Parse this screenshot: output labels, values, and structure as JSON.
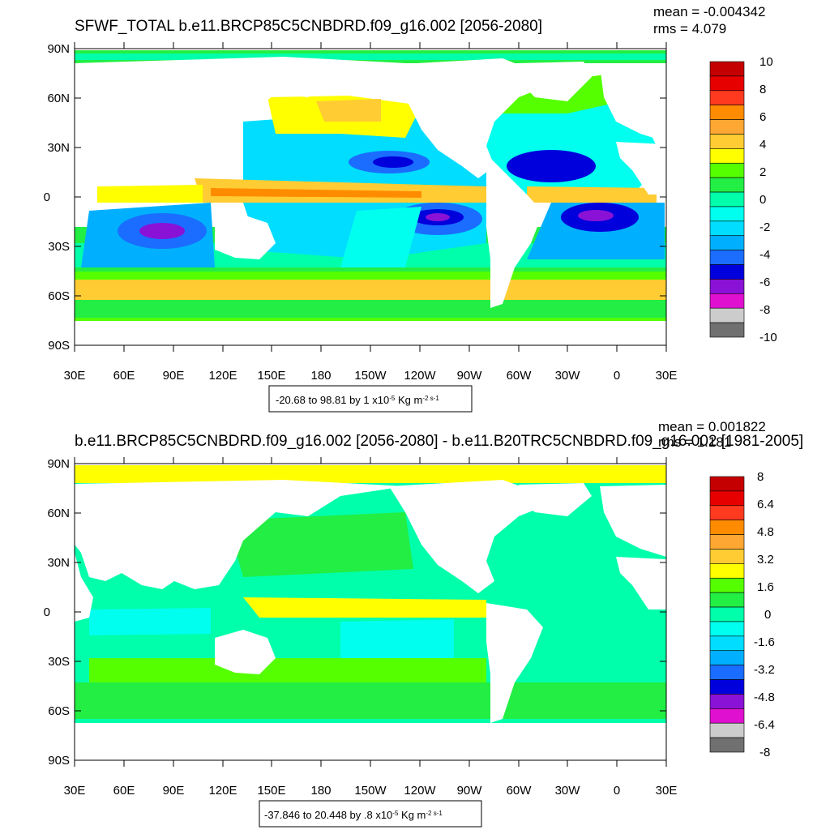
{
  "panels": [
    {
      "title": "SFWF_TOTAL b.e11.BRCP85C5CNBDRD.f09_g16.002 [2056-2080]",
      "stats": {
        "mean": "mean = -0.004342",
        "rms": "rms = 4.079"
      },
      "lat_labels": [
        "90N",
        "60N",
        "30N",
        "0",
        "30S",
        "60S",
        "90S"
      ],
      "lon_labels": [
        "30E",
        "60E",
        "90E",
        "120E",
        "150E",
        "180",
        "150W",
        "120W",
        "90W",
        "60W",
        "30W",
        "0",
        "30E"
      ],
      "colorbar": {
        "labels": [
          "10",
          "8",
          "6",
          "4",
          "2",
          "0",
          "-2",
          "-4",
          "-6",
          "-8",
          "-10"
        ],
        "colors": [
          "#c40000",
          "#e60000",
          "#ff3a1f",
          "#ff8c00",
          "#ffa733",
          "#ffcc33",
          "#ffff00",
          "#55ff00",
          "#22ee44",
          "#00ffaa",
          "#00ffee",
          "#00ddff",
          "#00b0ff",
          "#1a6dff",
          "#0000dd",
          "#8a12d6",
          "#e010d0",
          "#cccccc",
          "#707070"
        ]
      },
      "range_text": {
        "main": "-20.68 to 98.81 by 1 x10",
        "exp": "-5",
        "unit": " Kg m",
        "unit_exp": "-2 s-1"
      }
    },
    {
      "title": "b.e11.BRCP85C5CNBDRD.f09_g16.002 [2056-2080] - b.e11.B20TRC5CNBDRD.f09_g16.002 [1981-2005]",
      "stats": {
        "mean": "mean = 0.001822",
        "rms": "rms = 1.181"
      },
      "lat_labels": [
        "90N",
        "60N",
        "30N",
        "0",
        "30S",
        "60S",
        "90S"
      ],
      "lon_labels": [
        "30E",
        "60E",
        "90E",
        "120E",
        "150E",
        "180",
        "150W",
        "120W",
        "90W",
        "60W",
        "30W",
        "0",
        "30E"
      ],
      "colorbar": {
        "labels": [
          "8",
          "6.4",
          "4.8",
          "3.2",
          "1.6",
          "0",
          "-1.6",
          "-3.2",
          "-4.8",
          "-6.4",
          "-8"
        ],
        "colors": [
          "#c40000",
          "#e60000",
          "#ff3a1f",
          "#ff8c00",
          "#ffa733",
          "#ffcc33",
          "#ffff00",
          "#55ff00",
          "#22ee44",
          "#00ffaa",
          "#00ffee",
          "#00ddff",
          "#00b0ff",
          "#1a6dff",
          "#0000dd",
          "#8a12d6",
          "#e010d0",
          "#cccccc",
          "#707070"
        ]
      },
      "range_text": {
        "main": "-37.846 to 20.448 by .8 x10",
        "exp": "-5",
        "unit": " Kg m",
        "unit_exp": "-2 s-1"
      }
    }
  ]
}
